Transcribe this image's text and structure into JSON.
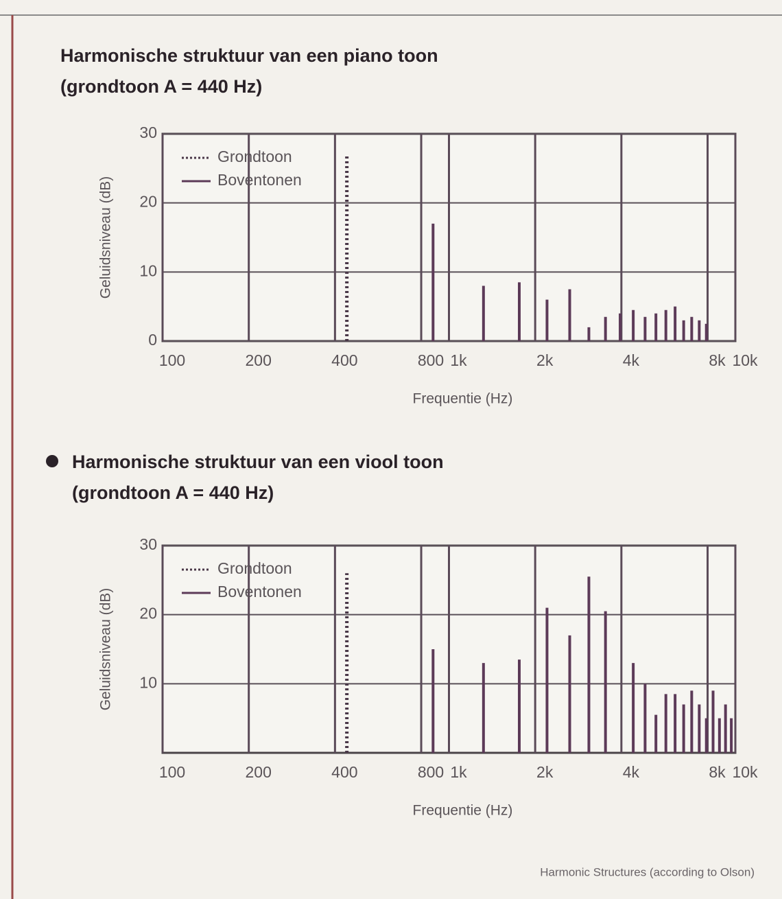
{
  "chart_data": [
    {
      "type": "bar",
      "title": "Harmonische struktuur van een piano toon",
      "subtitle": "(grondtoon A = 440 Hz)",
      "xlabel": "Frequentie (Hz)",
      "ylabel": "Geluidsniveau (dB)",
      "xscale": "log",
      "xlim": [
        100,
        10000
      ],
      "xticks": [
        100,
        200,
        400,
        800,
        {
          "value": 1000,
          "label": "1k"
        },
        {
          "value": 2000,
          "label": "2k"
        },
        {
          "value": 4000,
          "label": "4k"
        },
        {
          "value": 8000,
          "label": "8k"
        },
        {
          "value": 10000,
          "label": "10k"
        }
      ],
      "ylim": [
        0,
        30
      ],
      "yticks": [
        0,
        10,
        20,
        30
      ],
      "grid": true,
      "series": [
        {
          "name": "Grondtoon",
          "style": "dotted",
          "color": "#4a3848",
          "x": [
            440
          ],
          "values": [
            27
          ]
        },
        {
          "name": "Boventonen",
          "style": "bars",
          "color": "#5c3a58",
          "x": [
            880,
            1320,
            1760,
            2200,
            2640,
            3080,
            3520,
            3960,
            4400,
            4840,
            5280,
            5720,
            6160,
            6600,
            7040,
            7480,
            7920
          ],
          "values": [
            17,
            8,
            8.5,
            6,
            7.5,
            2,
            3.5,
            4,
            4.5,
            3.5,
            4,
            4.5,
            5,
            3,
            3.5,
            3,
            2.5
          ]
        }
      ]
    },
    {
      "type": "bar",
      "title": "Harmonische struktuur van een viool toon",
      "subtitle": "(grondtoon A = 440 Hz)",
      "xlabel": "Frequentie (Hz)",
      "ylabel": "Geluidsniveau (dB)",
      "xscale": "log",
      "xlim": [
        100,
        10000
      ],
      "xticks": [
        100,
        200,
        400,
        800,
        {
          "value": 1000,
          "label": "1k"
        },
        {
          "value": 2000,
          "label": "2k"
        },
        {
          "value": 4000,
          "label": "4k"
        },
        {
          "value": 8000,
          "label": "8k"
        },
        {
          "value": 10000,
          "label": "10k"
        }
      ],
      "ylim": [
        0,
        30
      ],
      "yticks": [
        10,
        20,
        30
      ],
      "grid": true,
      "series": [
        {
          "name": "Grondtoon",
          "style": "dotted",
          "color": "#4a3848",
          "x": [
            440
          ],
          "values": [
            26
          ]
        },
        {
          "name": "Boventonen",
          "style": "bars",
          "color": "#5c3a58",
          "x": [
            880,
            1320,
            1760,
            2200,
            2640,
            3080,
            3520,
            4400,
            4840,
            5280,
            5720,
            6160,
            6600,
            7040,
            7480,
            7920,
            8360,
            8800,
            9240,
            9680
          ],
          "values": [
            15,
            13,
            13.5,
            21,
            17,
            25.5,
            20.5,
            13,
            10,
            5.5,
            8.5,
            8.5,
            7,
            9,
            7,
            5,
            9,
            5,
            7,
            5
          ]
        }
      ]
    }
  ],
  "caption": "Harmonic Structures (according to Olson)"
}
